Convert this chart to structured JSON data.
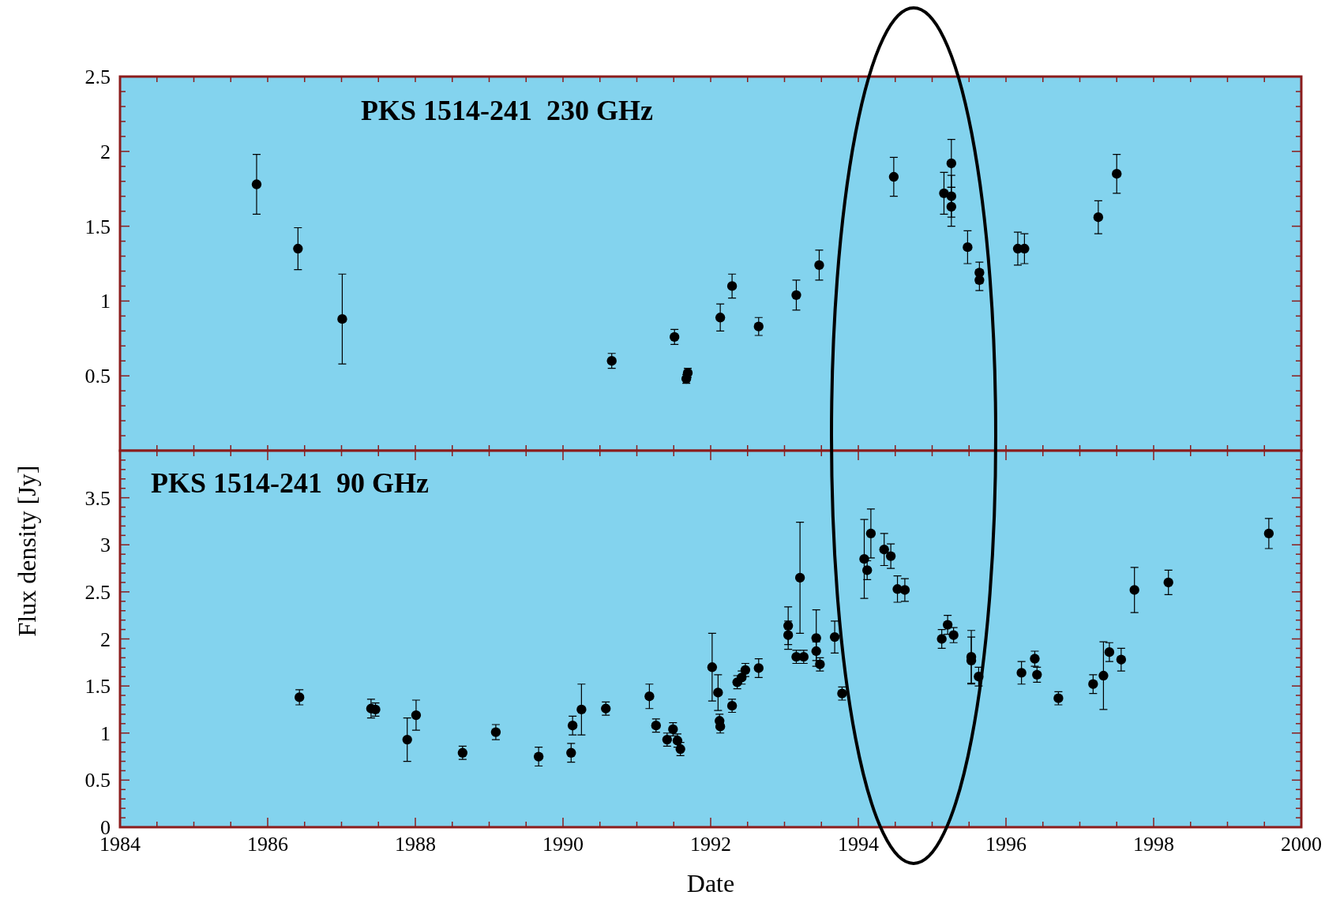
{
  "chart_data": [
    {
      "type": "scatter",
      "title": "PKS 1514-241  230 GHz",
      "marker": "circle",
      "grid": false,
      "tick_labels": "y",
      "xlim": [
        1984,
        2000
      ],
      "xticks": [
        {
          "value": 1984,
          "label": null
        },
        {
          "value": 1984.5,
          "label": null
        },
        {
          "value": 1985,
          "label": null
        },
        {
          "value": 1985.5,
          "label": null
        },
        {
          "value": 1986,
          "label": null
        },
        {
          "value": 1986.5,
          "label": null
        },
        {
          "value": 1987,
          "label": null
        },
        {
          "value": 1987.5,
          "label": null
        },
        {
          "value": 1988,
          "label": null
        },
        {
          "value": 1988.5,
          "label": null
        },
        {
          "value": 1989,
          "label": null
        },
        {
          "value": 1989.5,
          "label": null
        },
        {
          "value": 1990,
          "label": null
        },
        {
          "value": 1990.5,
          "label": null
        },
        {
          "value": 1991,
          "label": null
        },
        {
          "value": 1991.5,
          "label": null
        },
        {
          "value": 1992,
          "label": null
        },
        {
          "value": 1992.5,
          "label": null
        },
        {
          "value": 1993,
          "label": null
        },
        {
          "value": 1993.5,
          "label": null
        },
        {
          "value": 1994,
          "label": null
        },
        {
          "value": 1994.5,
          "label": null
        },
        {
          "value": 1995,
          "label": null
        },
        {
          "value": 1995.5,
          "label": null
        },
        {
          "value": 1996,
          "label": null
        },
        {
          "value": 1996.5,
          "label": null
        },
        {
          "value": 1997,
          "label": null
        },
        {
          "value": 1997.5,
          "label": null
        },
        {
          "value": 1998,
          "label": null
        },
        {
          "value": 1998.5,
          "label": null
        },
        {
          "value": 1999,
          "label": null
        },
        {
          "value": 1999.5,
          "label": null
        },
        {
          "value": 2000,
          "label": null
        }
      ],
      "ylim": [
        0,
        2.5
      ],
      "yticks": [
        {
          "value": 0.1,
          "label": null
        },
        {
          "value": 0.2,
          "label": null
        },
        {
          "value": 0.3,
          "label": null
        },
        {
          "value": 0.4,
          "label": null
        },
        0.5,
        {
          "value": 0.6,
          "label": null
        },
        {
          "value": 0.7,
          "label": null
        },
        {
          "value": 0.8,
          "label": null
        },
        {
          "value": 0.9,
          "label": null
        },
        1,
        {
          "value": 1.1,
          "label": null
        },
        {
          "value": 1.2,
          "label": null
        },
        {
          "value": 1.3,
          "label": null
        },
        {
          "value": 1.4,
          "label": null
        },
        1.5,
        {
          "value": 1.6,
          "label": null
        },
        {
          "value": 1.7,
          "label": null
        },
        {
          "value": 1.8,
          "label": null
        },
        {
          "value": 1.9,
          "label": null
        },
        2,
        {
          "value": 2.1,
          "label": null
        },
        {
          "value": 2.2,
          "label": null
        },
        {
          "value": 2.3,
          "label": null
        },
        {
          "value": 2.4,
          "label": null
        },
        2.5
      ],
      "series": [
        {
          "color": "#000000",
          "x": [
            1985.85,
            1986.41,
            1987.01,
            1990.66,
            1991.51,
            1991.67,
            1991.69,
            1992.13,
            1992.29,
            1992.65,
            1993.16,
            1993.47,
            1994.48,
            1995.16,
            1995.26,
            1995.26,
            1995.26,
            1995.48,
            1995.64,
            1995.64,
            1996.16,
            1996.25,
            1997.25,
            1997.5
          ],
          "values": [
            1.78,
            1.35,
            0.88,
            0.6,
            0.76,
            0.48,
            0.52,
            0.89,
            1.1,
            0.83,
            1.04,
            1.24,
            1.83,
            1.72,
            1.92,
            1.7,
            1.63,
            1.36,
            1.19,
            1.14,
            1.35,
            1.35,
            1.56,
            1.85
          ],
          "errors": [
            0.2,
            0.14,
            0.3,
            0.05,
            0.05,
            0.03,
            0.03,
            0.09,
            0.08,
            0.06,
            0.1,
            0.1,
            0.13,
            0.14,
            0.16,
            0.14,
            0.13,
            0.11,
            0.07,
            0.07,
            0.11,
            0.1,
            0.11,
            0.13
          ]
        }
      ]
    },
    {
      "type": "scatter",
      "title": "PKS 1514-241  90 GHz",
      "xlabel": "Date",
      "ylabel": "Flux density [Jy]",
      "marker": "circle",
      "grid": false,
      "xlim": [
        1984,
        2000
      ],
      "xticks": [
        1984,
        {
          "value": 1984.5,
          "label": null
        },
        {
          "value": 1985,
          "label": null
        },
        {
          "value": 1985.5,
          "label": null
        },
        1986,
        {
          "value": 1986.5,
          "label": null
        },
        {
          "value": 1987,
          "label": null
        },
        {
          "value": 1987.5,
          "label": null
        },
        1988,
        {
          "value": 1988.5,
          "label": null
        },
        {
          "value": 1989,
          "label": null
        },
        {
          "value": 1989.5,
          "label": null
        },
        1990,
        {
          "value": 1990.5,
          "label": null
        },
        {
          "value": 1991,
          "label": null
        },
        {
          "value": 1991.5,
          "label": null
        },
        1992,
        {
          "value": 1992.5,
          "label": null
        },
        {
          "value": 1993,
          "label": null
        },
        {
          "value": 1993.5,
          "label": null
        },
        1994,
        {
          "value": 1994.5,
          "label": null
        },
        {
          "value": 1995,
          "label": null
        },
        {
          "value": 1995.5,
          "label": null
        },
        1996,
        {
          "value": 1996.5,
          "label": null
        },
        {
          "value": 1997,
          "label": null
        },
        {
          "value": 1997.5,
          "label": null
        },
        1998,
        {
          "value": 1998.5,
          "label": null
        },
        {
          "value": 1999,
          "label": null
        },
        {
          "value": 1999.5,
          "label": null
        },
        2000
      ],
      "ylim": [
        0,
        4
      ],
      "yticks": [
        0,
        {
          "value": 0.1,
          "label": null
        },
        {
          "value": 0.2,
          "label": null
        },
        {
          "value": 0.3,
          "label": null
        },
        {
          "value": 0.4,
          "label": null
        },
        0.5,
        {
          "value": 0.6,
          "label": null
        },
        {
          "value": 0.7,
          "label": null
        },
        {
          "value": 0.8,
          "label": null
        },
        {
          "value": 0.9,
          "label": null
        },
        1,
        {
          "value": 1.1,
          "label": null
        },
        {
          "value": 1.2,
          "label": null
        },
        {
          "value": 1.3,
          "label": null
        },
        {
          "value": 1.4,
          "label": null
        },
        1.5,
        {
          "value": 1.6,
          "label": null
        },
        {
          "value": 1.7,
          "label": null
        },
        {
          "value": 1.8,
          "label": null
        },
        {
          "value": 1.9,
          "label": null
        },
        2,
        {
          "value": 2.1,
          "label": null
        },
        {
          "value": 2.2,
          "label": null
        },
        {
          "value": 2.3,
          "label": null
        },
        {
          "value": 2.4,
          "label": null
        },
        2.5,
        {
          "value": 2.6,
          "label": null
        },
        {
          "value": 2.7,
          "label": null
        },
        {
          "value": 2.8,
          "label": null
        },
        {
          "value": 2.9,
          "label": null
        },
        3,
        {
          "value": 3.1,
          "label": null
        },
        {
          "value": 3.2,
          "label": null
        },
        {
          "value": 3.3,
          "label": null
        },
        {
          "value": 3.4,
          "label": null
        },
        3.5,
        {
          "value": 3.6,
          "label": null
        },
        {
          "value": 3.7,
          "label": null
        },
        {
          "value": 3.8,
          "label": null
        },
        {
          "value": 3.9,
          "label": null
        }
      ],
      "series": [
        {
          "color": "#000000",
          "x": [
            1986.43,
            1987.4,
            1987.46,
            1987.89,
            1988.01,
            1988.64,
            1989.09,
            1989.67,
            1990.11,
            1990.13,
            1990.25,
            1990.58,
            1991.17,
            1991.26,
            1991.41,
            1991.49,
            1991.55,
            1991.59,
            1992.02,
            1992.1,
            1992.12,
            1992.13,
            1992.29,
            1992.36,
            1992.42,
            1992.47,
            1992.65,
            1993.05,
            1993.05,
            1993.21,
            1993.16,
            1993.26,
            1993.43,
            1993.43,
            1993.48,
            1993.68,
            1993.78,
            1994.08,
            1994.12,
            1994.17,
            1994.35,
            1994.44,
            1994.53,
            1994.63,
            1995.13,
            1995.21,
            1995.29,
            1995.53,
            1995.53,
            1995.63,
            1996.21,
            1996.39,
            1996.42,
            1996.71,
            1997.18,
            1997.32,
            1997.4,
            1997.56,
            1997.74,
            1998.2,
            1999.56
          ],
          "values": [
            1.38,
            1.26,
            1.25,
            0.93,
            1.19,
            0.79,
            1.01,
            0.75,
            0.79,
            1.08,
            1.25,
            1.26,
            1.39,
            1.08,
            0.93,
            1.04,
            0.92,
            0.83,
            1.7,
            1.43,
            1.13,
            1.07,
            1.29,
            1.54,
            1.59,
            1.67,
            1.69,
            2.14,
            2.04,
            2.65,
            1.81,
            1.81,
            2.01,
            1.87,
            1.73,
            2.02,
            1.42,
            2.85,
            2.73,
            3.12,
            2.95,
            2.88,
            2.53,
            2.52,
            2.0,
            2.15,
            2.04,
            1.81,
            1.77,
            1.6,
            1.64,
            1.79,
            1.62,
            1.37,
            1.52,
            1.61,
            1.86,
            1.78,
            2.52,
            2.6,
            3.12
          ],
          "errors": [
            0.08,
            0.1,
            0.07,
            0.23,
            0.16,
            0.07,
            0.08,
            0.1,
            0.1,
            0.1,
            0.27,
            0.07,
            0.13,
            0.07,
            0.07,
            0.07,
            0.07,
            0.07,
            0.36,
            0.19,
            0.07,
            0.07,
            0.07,
            0.07,
            0.07,
            0.07,
            0.1,
            0.2,
            0.15,
            0.59,
            0.07,
            0.07,
            0.3,
            0.1,
            0.07,
            0.17,
            0.07,
            0.42,
            0.1,
            0.26,
            0.17,
            0.13,
            0.14,
            0.12,
            0.1,
            0.1,
            0.08,
            0.28,
            0.25,
            0.1,
            0.12,
            0.08,
            0.08,
            0.07,
            0.1,
            0.36,
            0.1,
            0.12,
            0.24,
            0.13,
            0.16
          ]
        }
      ]
    }
  ]
}
